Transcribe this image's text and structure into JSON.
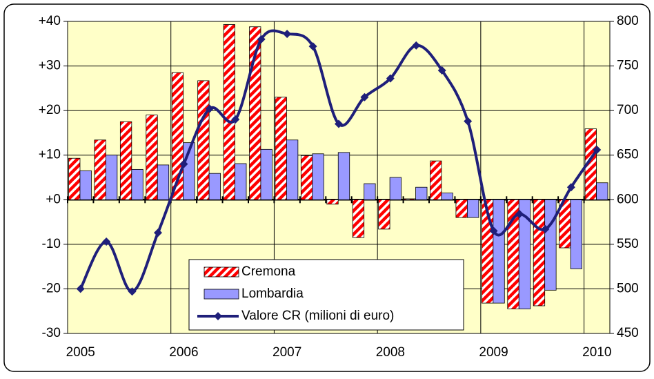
{
  "chart_data": {
    "type": "bar",
    "categories": [
      "2005",
      null,
      null,
      null,
      "2006",
      null,
      null,
      null,
      "2007",
      null,
      null,
      null,
      "2008",
      null,
      null,
      null,
      "2009",
      null,
      null,
      null,
      "2010"
    ],
    "series": [
      {
        "name": "Cremona",
        "color": "#ff0000",
        "values": [
          9.3,
          13.4,
          17.5,
          19,
          28.5,
          26.7,
          39.3,
          38.8,
          23,
          9.9,
          -1,
          -8.5,
          -6.6,
          0.2,
          8.7,
          -4,
          -23.2,
          -24.5,
          -23.8,
          -10.8,
          15.9
        ]
      },
      {
        "name": "Lombardia",
        "color": "#9999ff",
        "values": [
          6.5,
          10,
          6.8,
          7.8,
          12.8,
          5.9,
          8.1,
          11.3,
          13.4,
          10.3,
          10.6,
          3.6,
          5,
          2.8,
          1.5,
          -4,
          -23.2,
          -24.5,
          -20.3,
          -15.5,
          3.8
        ]
      },
      {
        "name": "Valore CR (milioni di euro)",
        "color": "#1f1f7a",
        "type": "line",
        "axis": "y2",
        "values": [
          500,
          553,
          497,
          563,
          640,
          702,
          690,
          780,
          786,
          772,
          685,
          715,
          736,
          773,
          745,
          688,
          565,
          584,
          567,
          614,
          656
        ]
      }
    ],
    "ylim": [
      -30,
      40
    ],
    "yticks": [
      {
        "value": 40,
        "label": "+40"
      },
      {
        "value": 30,
        "label": "+30"
      },
      {
        "value": 20,
        "label": "+20"
      },
      {
        "value": 10,
        "label": "+10"
      },
      {
        "value": 0,
        "label": "+0"
      },
      -10,
      -20,
      -30
    ],
    "y2lim": [
      450,
      800
    ],
    "y2ticks": [
      800,
      750,
      700,
      650,
      600,
      550,
      500,
      450
    ],
    "grid": true,
    "legend": "bottom-center"
  }
}
